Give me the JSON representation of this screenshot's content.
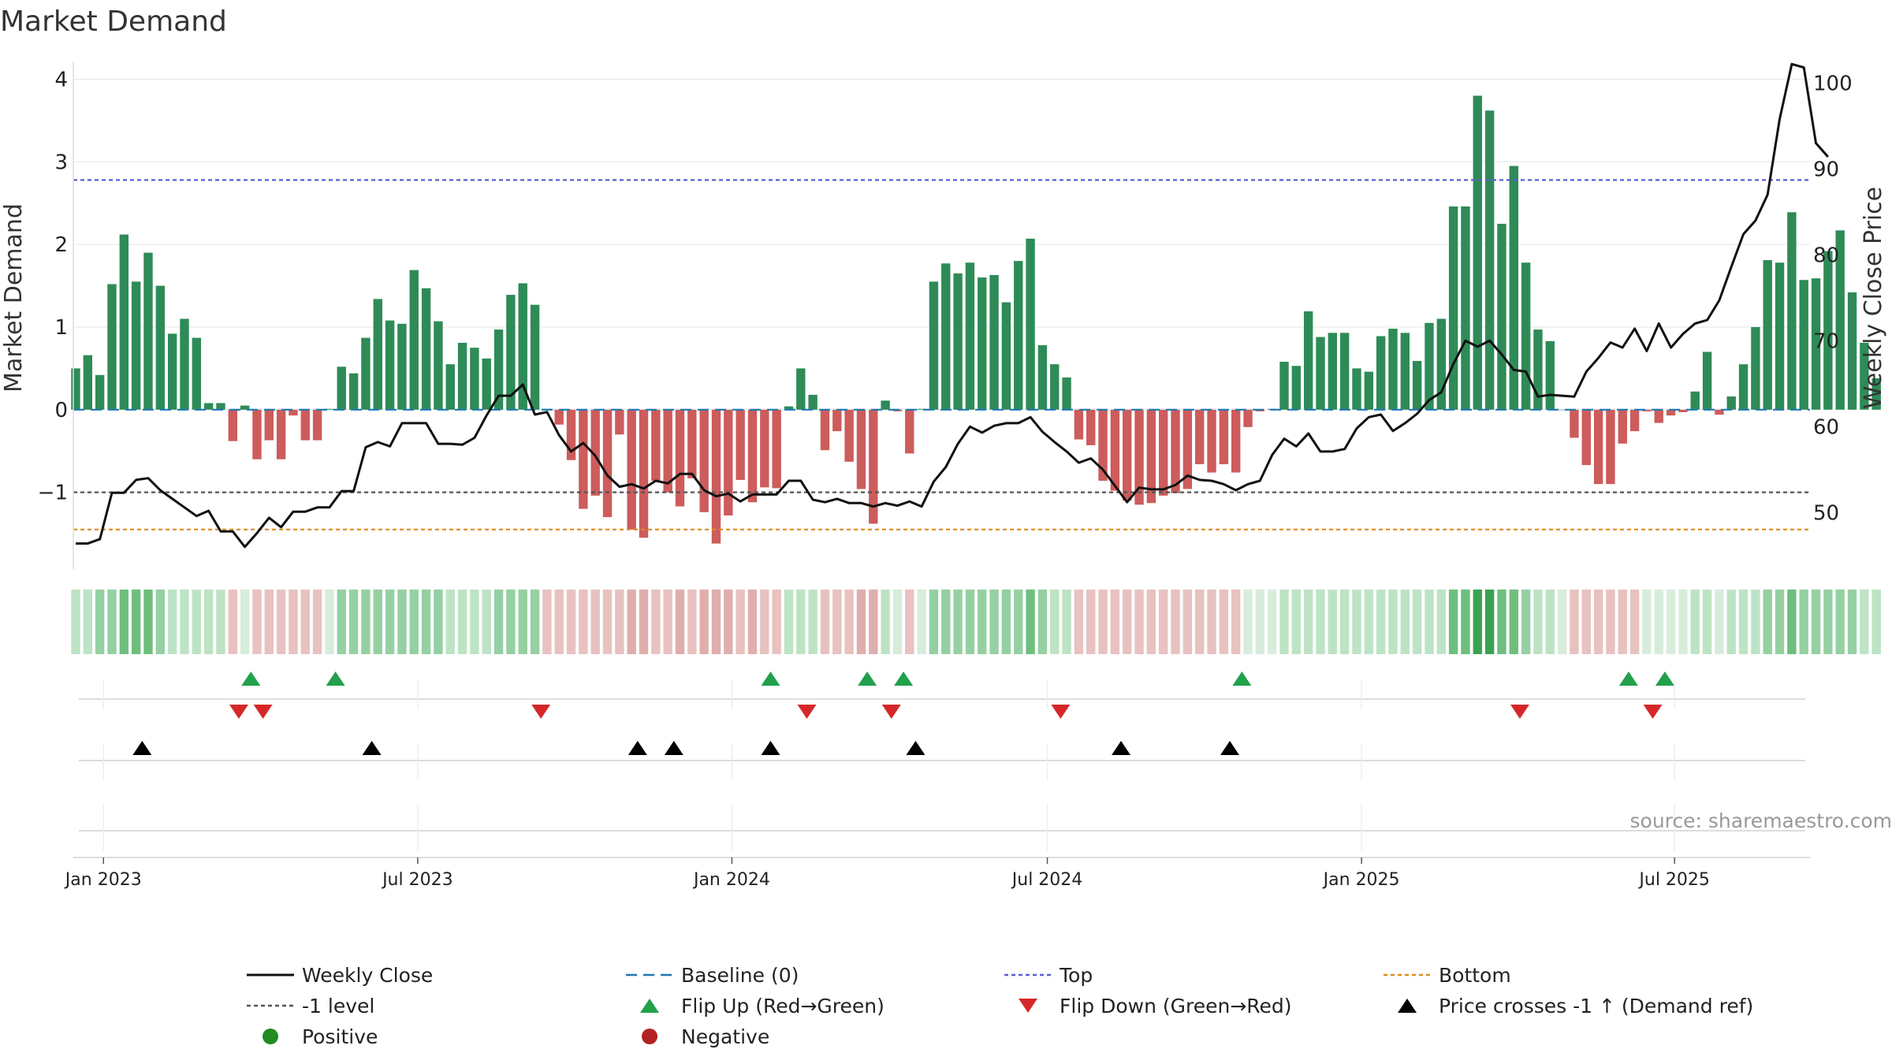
{
  "colors": {
    "green": "#2e8b57",
    "red": "#cd5c5c",
    "price": "#111111",
    "baseline": "#1f77b4",
    "top": "#5b5bd6",
    "bottom": "#e08a1e",
    "level": "#555555",
    "flip_up": "#22a04b",
    "flip_down": "#d62728",
    "cross": "#000000",
    "positive_dot": "#228b22",
    "negative_dot": "#b22222"
  },
  "chart_data": {
    "type": "bar",
    "title": "Market Demand",
    "ylabel": "Market Demand",
    "y2label": "Weekly Close Price",
    "ylim": [
      -1.9,
      4.1
    ],
    "y2lim": [
      43.7,
      101.4
    ],
    "yticks": [
      "4",
      "3",
      "2",
      "1",
      "0",
      "−1"
    ],
    "ytick_values": [
      4,
      3,
      2,
      1,
      0,
      -1
    ],
    "y2ticks": [
      "100",
      "90",
      "80",
      "70",
      "60",
      "50"
    ],
    "y2tick_values": [
      100,
      90,
      80,
      70,
      60,
      50
    ],
    "date_labels": [
      "Jan 2023",
      "Jul 2023",
      "Jan 2024",
      "Jul 2024",
      "Jan 2025",
      "Jul 2025"
    ],
    "date_label_weeks": [
      2.3,
      28.3,
      54.3,
      80.4,
      106.4,
      132.3
    ],
    "demand": [
      0.5,
      0.66,
      0.42,
      1.52,
      2.12,
      1.55,
      1.9,
      1.5,
      0.92,
      1.1,
      0.87,
      0.08,
      0.08,
      -0.38,
      0.05,
      -0.6,
      -0.37,
      -0.6,
      -0.07,
      -0.37,
      -0.37,
      0.01,
      0.52,
      0.44,
      0.87,
      1.34,
      1.08,
      1.04,
      1.69,
      1.47,
      1.07,
      0.55,
      0.81,
      0.75,
      0.62,
      0.97,
      1.39,
      1.53,
      1.27,
      0.01,
      -0.18,
      -0.61,
      -1.2,
      -1.04,
      -1.3,
      -0.3,
      -1.45,
      -1.55,
      -0.86,
      -1.0,
      -1.17,
      -0.83,
      -1.24,
      -1.62,
      -1.28,
      -0.85,
      -1.12,
      -0.94,
      -0.95,
      0.04,
      0.5,
      0.18,
      -0.49,
      -0.26,
      -0.63,
      -0.96,
      -1.38,
      0.11,
      -0.02,
      -0.53,
      0.01,
      1.55,
      1.77,
      1.65,
      1.78,
      1.6,
      1.63,
      1.3,
      1.8,
      2.07,
      0.78,
      0.55,
      0.39,
      -0.36,
      -0.43,
      -0.86,
      -0.98,
      -1.1,
      -1.15,
      -1.13,
      -1.04,
      -1.01,
      -0.96,
      -0.66,
      -0.76,
      -0.66,
      -0.76,
      -0.21,
      -0.02,
      0.01,
      0.58,
      0.53,
      1.19,
      0.88,
      0.93,
      0.93,
      0.5,
      0.46,
      0.89,
      0.98,
      0.93,
      0.59,
      1.05,
      1.1,
      2.46,
      2.46,
      3.8,
      3.62,
      2.25,
      2.95,
      1.78,
      0.97,
      0.83,
      0.0,
      -0.34,
      -0.67,
      -0.9,
      -0.9,
      -0.41,
      -0.26,
      -0.02,
      -0.16,
      -0.07,
      -0.03,
      0.22,
      0.7,
      -0.06,
      0.16,
      0.55,
      1.0,
      1.81,
      1.78,
      2.39,
      1.57,
      1.59,
      1.92,
      2.17,
      1.42,
      0.81,
      0.38
    ],
    "price": [
      46.4,
      46.4,
      46.9,
      52.3,
      52.3,
      53.8,
      54.0,
      52.6,
      51.6,
      50.6,
      49.6,
      50.2,
      47.8,
      47.8,
      46.0,
      47.6,
      49.4,
      48.3,
      50.1,
      50.1,
      50.6,
      50.6,
      52.5,
      52.5,
      57.6,
      58.2,
      57.7,
      60.4,
      60.4,
      60.4,
      58.0,
      58.0,
      57.9,
      58.7,
      61.3,
      63.6,
      63.6,
      64.9,
      61.4,
      61.7,
      59.0,
      57.1,
      58.1,
      56.6,
      54.3,
      53.0,
      53.3,
      52.8,
      53.7,
      53.4,
      54.5,
      54.5,
      52.6,
      51.9,
      52.2,
      51.3,
      52.1,
      52.1,
      52.1,
      53.7,
      53.7,
      51.5,
      51.2,
      51.6,
      51.1,
      51.1,
      50.7,
      51.1,
      50.8,
      51.3,
      50.7,
      53.6,
      55.3,
      58.0,
      60.0,
      59.3,
      60.1,
      60.4,
      60.4,
      61.1,
      59.4,
      58.2,
      57.1,
      55.8,
      56.3,
      55.0,
      53.1,
      51.2,
      52.9,
      52.7,
      52.7,
      53.2,
      54.3,
      53.8,
      53.7,
      53.3,
      52.6,
      53.3,
      53.7,
      56.7,
      58.6,
      57.7,
      59.2,
      57.1,
      57.1,
      57.4,
      59.8,
      61.1,
      61.4,
      59.5,
      60.4,
      61.5,
      63.1,
      64.0,
      67.3,
      70.0,
      69.3,
      70.0,
      68.4,
      66.6,
      66.4,
      63.5,
      63.7,
      63.6,
      63.5,
      66.4,
      68.0,
      69.8,
      69.2,
      71.4,
      68.8,
      72.0,
      69.2,
      70.8,
      72.0,
      72.4,
      74.7,
      78.6,
      82.4,
      84.0,
      87.0,
      95.8,
      102.2,
      101.8,
      93.0,
      91.4
    ],
    "color_band": [
      1,
      1,
      2,
      2,
      3,
      3,
      3,
      2,
      1,
      1,
      1,
      1,
      1,
      -1,
      0,
      -1,
      -1,
      -1,
      -1,
      -1,
      -1,
      0,
      2,
      2,
      2,
      2,
      2,
      2,
      2,
      2,
      2,
      1,
      1,
      1,
      1,
      2,
      2,
      2,
      2,
      -1,
      -1,
      -1,
      -1,
      -1,
      -1,
      -1,
      -2,
      -2,
      -1,
      -1,
      -2,
      -1,
      -2,
      -2,
      -2,
      -1,
      -2,
      -1,
      -1,
      1,
      1,
      1,
      -1,
      -1,
      -1,
      -2,
      -2,
      1,
      0,
      -1,
      0,
      2,
      2,
      2,
      2,
      2,
      2,
      2,
      2,
      3,
      2,
      1,
      1,
      -1,
      -1,
      -1,
      -1,
      -1,
      -1,
      -1,
      -1,
      -1,
      -1,
      -1,
      -1,
      -1,
      -1,
      0,
      0,
      0,
      1,
      1,
      1,
      1,
      1,
      1,
      1,
      1,
      1,
      1,
      1,
      1,
      1,
      1,
      3,
      3,
      4,
      4,
      3,
      3,
      2,
      1,
      1,
      0,
      -1,
      -1,
      -1,
      -1,
      -1,
      -1,
      0,
      0,
      0,
      0,
      1,
      1,
      0,
      1,
      1,
      1,
      2,
      2,
      3,
      2,
      2,
      2,
      2,
      2,
      1,
      1
    ],
    "flip_up_weeks": [
      14.5,
      21.5,
      57.5,
      65.5,
      68.5,
      96.5,
      128.5,
      131.5
    ],
    "flip_down_weeks": [
      13.5,
      15.5,
      38.5,
      60.5,
      67.5,
      81.5,
      119.5,
      130.5
    ],
    "cross_weeks": [
      5.5,
      24.5,
      46.5,
      49.5,
      57.5,
      69.5,
      86.5,
      95.5
    ],
    "levels": {
      "top": 2.78,
      "bottom": -1.45,
      "minus_one": -1,
      "baseline": 0
    },
    "legend": [
      [
        "Weekly Close",
        "Baseline (0)",
        "Top",
        "Bottom"
      ],
      [
        "-1 level",
        "Flip Up (Red→Green)",
        "Flip Down (Green→Red)",
        "Price crosses -1 ↑ (Demand ref)"
      ],
      [
        "Positive",
        "Negative"
      ]
    ],
    "source": "source: sharemaestro.com"
  }
}
